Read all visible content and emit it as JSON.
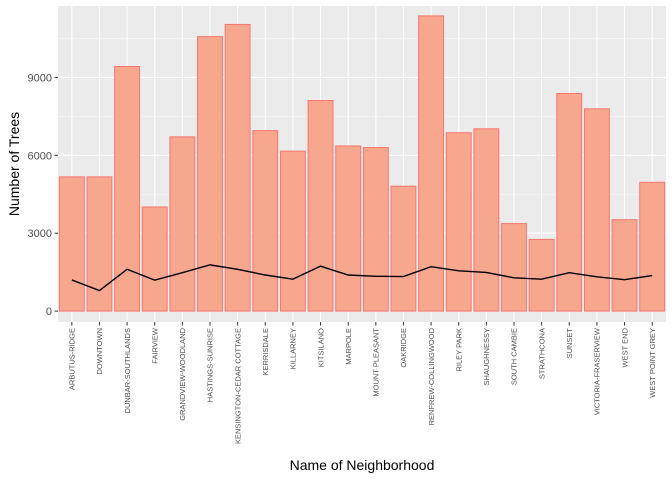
{
  "chart_data": {
    "type": "bar",
    "title": "",
    "xlabel": "Name of Neighborhood",
    "ylabel": "Number of Trees",
    "ylim": [
      -420,
      11750
    ],
    "yticks": [
      0,
      3000,
      6000,
      9000
    ],
    "ytick_labels": [
      "0",
      "3000",
      "6000",
      "9000"
    ],
    "grid": true,
    "legend": "none",
    "categories": [
      "ARBUTUS-RIDGE",
      "DOWNTOWN",
      "DUNBAR-SOUTHLANDS",
      "FAIRVIEW",
      "GRANDVIEW-WOODLAND",
      "HASTINGS-SUNRISE",
      "KENSINGTON-CEDAR COTTAGE",
      "KERRISDALE",
      "KILLARNEY",
      "KITSILANO",
      "MARPOLE",
      "MOUNT PLEASANT",
      "OAKRIDGE",
      "RENFREW-COLLINGWOOD",
      "RILEY PARK",
      "SHAUGHNESSY",
      "SOUTH CAMBIE",
      "STRATHCONA",
      "SUNSET",
      "VICTORIA-FRASERVIEW",
      "WEST END",
      "WEST POINT GREY"
    ],
    "series": [
      {
        "type": "bar",
        "values": [
          5170,
          5170,
          9420,
          4010,
          6710,
          10570,
          11040,
          6950,
          6160,
          8110,
          6360,
          6300,
          4810,
          11370,
          6870,
          7020,
          3370,
          2760,
          8380,
          7790,
          3520,
          4960
        ]
      },
      {
        "type": "line",
        "values": [
          1200,
          790,
          1610,
          1190,
          1480,
          1780,
          1610,
          1390,
          1230,
          1730,
          1390,
          1340,
          1330,
          1710,
          1550,
          1490,
          1280,
          1230,
          1480,
          1320,
          1210,
          1370
        ]
      }
    ],
    "colors": {
      "panel": "#ebebeb",
      "grid_major": "#ffffff",
      "bar_fill": "#f8a78f",
      "bar_edge": "#f8766d",
      "line": "#000000",
      "tick_text": "#4d4d4d",
      "tick_mark": "#333333"
    }
  }
}
